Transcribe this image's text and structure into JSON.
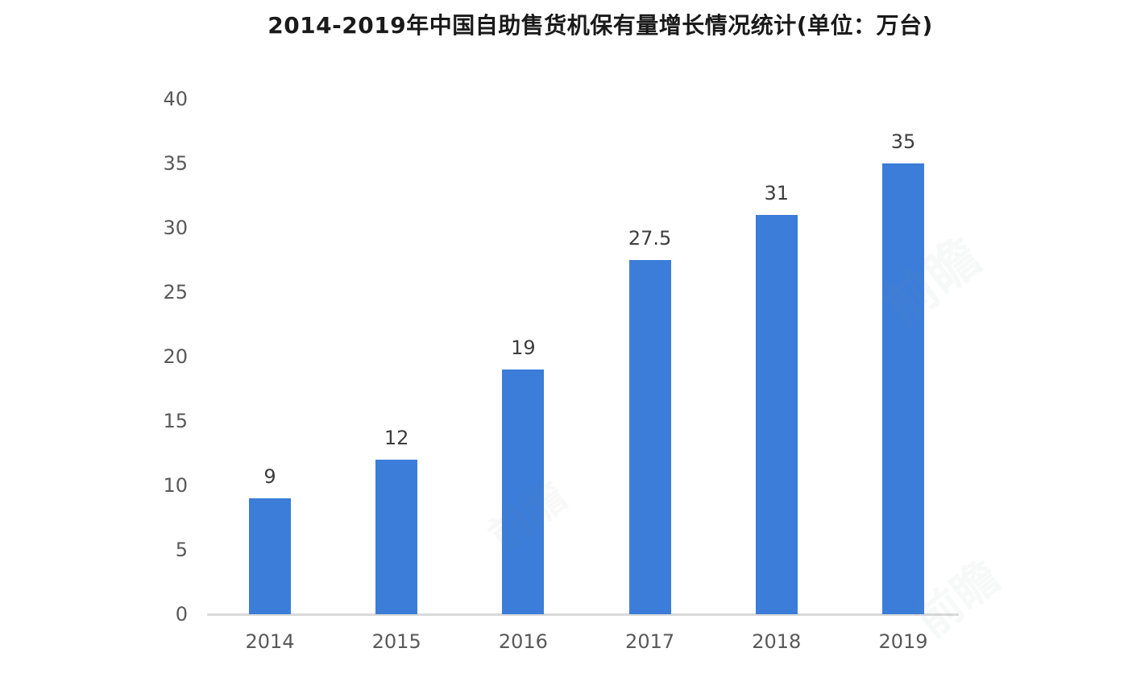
{
  "chart_data": {
    "type": "bar",
    "title": "2014-2019年中国自助售货机保有量增长情况统计(单位：万台)",
    "categories": [
      "2014",
      "2015",
      "2016",
      "2017",
      "2018",
      "2019"
    ],
    "values": [
      9,
      12,
      19,
      27.5,
      31,
      35
    ],
    "value_labels": [
      "9",
      "12",
      "19",
      "27.5",
      "31",
      "35"
    ],
    "xlabel": "",
    "ylabel": "",
    "ylim": [
      0,
      40
    ],
    "y_ticks": [
      0,
      5,
      10,
      15,
      20,
      25,
      30,
      35,
      40
    ],
    "grid": false,
    "legend": false,
    "colors": {
      "bar": "#3b7dd8",
      "axis_line": "#d9d9d9",
      "tick_label": "#595959",
      "value_label": "#3d3d3d",
      "title": "#1a1a1a"
    }
  },
  "watermark": {
    "text": "前瞻"
  }
}
